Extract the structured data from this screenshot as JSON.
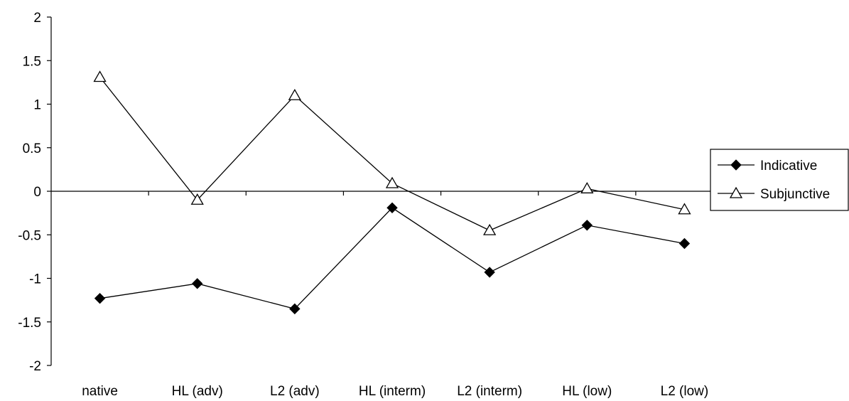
{
  "chart_data": {
    "type": "line",
    "title": "",
    "xlabel": "",
    "ylabel": "",
    "categories": [
      "native",
      "HL (adv)",
      "L2 (adv)",
      "HL (interm)",
      "L2 (interm)",
      "HL (low)",
      "L2 (low)"
    ],
    "ylim": [
      -2,
      2
    ],
    "yticks": [
      2,
      1.5,
      1,
      0.5,
      0,
      -0.5,
      -1,
      -1.5,
      -2
    ],
    "ytick_labels": [
      "2",
      "1.5",
      "1",
      "0.5",
      "0",
      "-0.5",
      "-1",
      "-1.5",
      "-2"
    ],
    "grid": false,
    "legend_position": "right",
    "series": [
      {
        "name": "Indicative",
        "marker": "filled-diamond",
        "color": "#000000",
        "values": [
          -1.23,
          -1.06,
          -1.35,
          -0.19,
          -0.93,
          -0.39,
          -0.6
        ]
      },
      {
        "name": "Subjunctive",
        "marker": "open-triangle",
        "color": "#000000",
        "values": [
          1.31,
          -0.1,
          1.1,
          0.09,
          -0.45,
          0.03,
          -0.21
        ]
      }
    ]
  }
}
